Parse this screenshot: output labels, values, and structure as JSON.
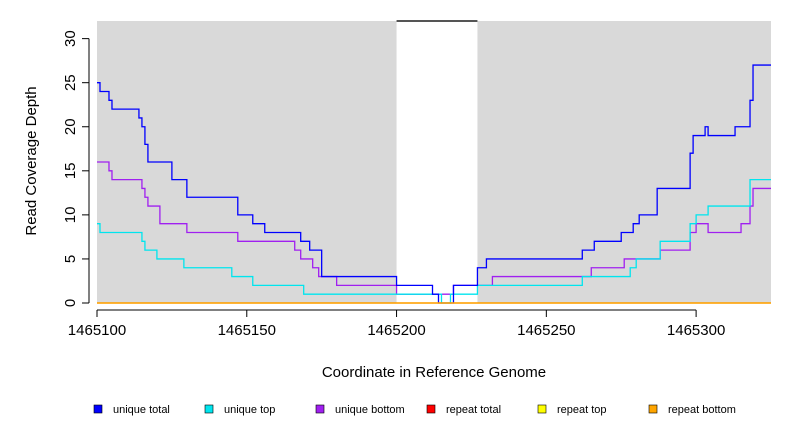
{
  "chart_data": {
    "type": "line",
    "step": true,
    "xlabel": "Coordinate in Reference Genome",
    "ylabel": "Read Coverage Depth",
    "xlim": [
      1465100,
      1465325
    ],
    "ylim": [
      0,
      32
    ],
    "x_ticks": [
      1465100,
      1465150,
      1465200,
      1465250,
      1465300
    ],
    "y_ticks": [
      0,
      5,
      10,
      15,
      20,
      25,
      30
    ],
    "shaded_regions": [
      [
        1465100,
        1465200
      ],
      [
        1465227,
        1465325
      ]
    ],
    "shade_color": "#d9d9d9",
    "top_frame_gap": [
      1465200,
      1465227
    ],
    "legend_position": "bottom",
    "series": [
      {
        "name": "unique total",
        "color": "#0000ff",
        "x": [
          1465100,
          1465101,
          1465103,
          1465104,
          1465105,
          1465114,
          1465115,
          1465116,
          1465117,
          1465120,
          1465125,
          1465130,
          1465147,
          1465152,
          1465156,
          1465168,
          1465171,
          1465175,
          1465200,
          1465206,
          1465212,
          1465214,
          1465217,
          1465218,
          1465219,
          1465227,
          1465230,
          1465260,
          1465262,
          1465266,
          1465271,
          1465275,
          1465277,
          1465279,
          1465281,
          1465287,
          1465298,
          1465299,
          1465303,
          1465304,
          1465308,
          1465313,
          1465314,
          1465317,
          1465318,
          1465319,
          1465320,
          1465321,
          1465325
        ],
        "values": [
          25,
          24,
          24,
          23,
          22,
          21,
          20,
          18,
          16,
          16,
          14,
          12,
          10,
          9,
          8,
          7,
          6,
          3,
          2,
          2,
          1,
          0,
          0,
          0,
          2,
          4,
          5,
          5,
          6,
          7,
          7,
          8,
          8,
          9,
          10,
          13,
          17,
          19,
          20,
          19,
          19,
          20,
          20,
          20,
          23,
          27,
          27,
          27,
          27
        ]
      },
      {
        "name": "unique top",
        "color": "#00e5ee",
        "x": [
          1465100,
          1465101,
          1465113,
          1465115,
          1465116,
          1465120,
          1465129,
          1465145,
          1465152,
          1465160,
          1465169,
          1465175,
          1465200,
          1465212,
          1465215,
          1465218,
          1465227,
          1465232,
          1465262,
          1465276,
          1465278,
          1465280,
          1465288,
          1465298,
          1465300,
          1465304,
          1465318,
          1465325
        ],
        "values": [
          9,
          8,
          8,
          7,
          6,
          5,
          4,
          3,
          2,
          2,
          1,
          1,
          1,
          1,
          0,
          1,
          2,
          2,
          3,
          3,
          4,
          5,
          7,
          9,
          10,
          11,
          14,
          14
        ]
      },
      {
        "name": "unique bottom",
        "color": "#a020f0",
        "x": [
          1465100,
          1465103,
          1465104,
          1465105,
          1465114,
          1465115,
          1465116,
          1465117,
          1465121,
          1465130,
          1465147,
          1465166,
          1465168,
          1465172,
          1465174,
          1465180,
          1465200,
          1465217,
          1465219,
          1465228,
          1465232,
          1465265,
          1465269,
          1465276,
          1465278,
          1465288,
          1465298,
          1465300,
          1465304,
          1465310,
          1465315,
          1465318,
          1465319,
          1465325
        ],
        "values": [
          16,
          16,
          15,
          14,
          14,
          13,
          12,
          11,
          9,
          8,
          7,
          6,
          5,
          4,
          3,
          2,
          1,
          1,
          2,
          2,
          3,
          4,
          4,
          5,
          5,
          6,
          8,
          9,
          8,
          8,
          9,
          11,
          13,
          13
        ]
      },
      {
        "name": "repeat total",
        "color": "#ff0000",
        "x": [
          1465100,
          1465325
        ],
        "values": [
          0,
          0
        ]
      },
      {
        "name": "repeat top",
        "color": "#ffff00",
        "x": [
          1465100,
          1465325
        ],
        "values": [
          0,
          0
        ]
      },
      {
        "name": "repeat bottom",
        "color": "#ffa500",
        "x": [
          1465100,
          1465325
        ],
        "values": [
          0,
          0
        ]
      }
    ]
  }
}
